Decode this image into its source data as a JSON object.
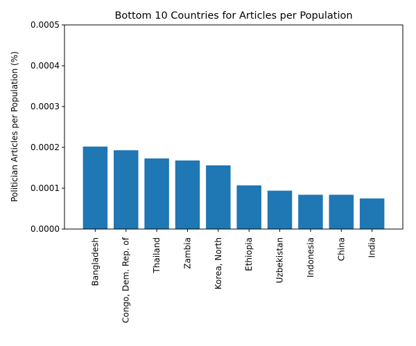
{
  "chart_data": {
    "type": "bar",
    "title": "Bottom 10 Countries for Articles per Population",
    "xlabel": "",
    "ylabel": "Politician Articles per Population (%)",
    "categories": [
      "Bangladesh",
      "Congo, Dem. Rep. of",
      "Thailand",
      "Zambia",
      "Korea, North",
      "Ethiopia",
      "Uzbekistan",
      "Indonesia",
      "China",
      "India"
    ],
    "values": [
      0.000202,
      0.000193,
      0.000173,
      0.000168,
      0.000156,
      0.000107,
      9.4e-05,
      8.4e-05,
      8.4e-05,
      7.5e-05
    ],
    "ylim": [
      0,
      0.0005
    ],
    "yticks": [
      "0.0000",
      "0.0001",
      "0.0002",
      "0.0003",
      "0.0004",
      "0.0005"
    ],
    "bar_color": "#1f77b4",
    "grid": false,
    "legend": "none"
  }
}
